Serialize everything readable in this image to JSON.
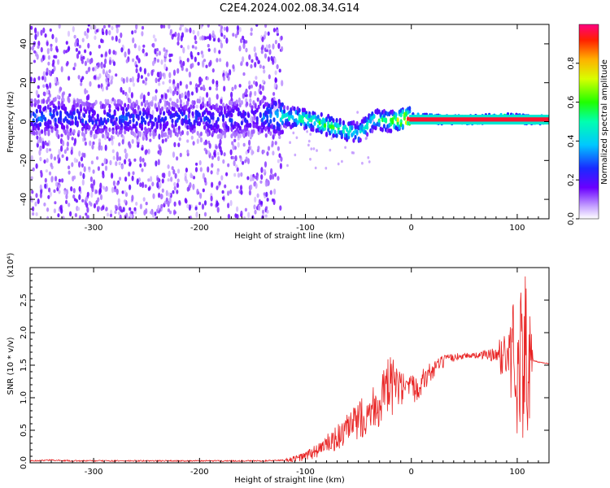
{
  "title": "C2E4.2024.002.08.34.G14",
  "chart_data": [
    {
      "type": "heatmap",
      "xlabel": "Height of straight line (km)",
      "ylabel": "Frequency (Hz)",
      "xlim": [
        -360,
        130
      ],
      "ylim": [
        -50,
        50
      ],
      "xticks": [
        -300,
        -200,
        -100,
        0,
        100
      ],
      "yticks": [
        -40,
        -20,
        0,
        20,
        40
      ],
      "colorbar": {
        "label": "Normalized spectral amplitude",
        "range": [
          0.0,
          1.0
        ],
        "ticks": [
          "0.0",
          "0.2",
          "0.4",
          "0.6",
          "0.8"
        ]
      },
      "signal_track": {
        "x": [
          -360,
          -330,
          -300,
          -270,
          -240,
          -210,
          -180,
          -150,
          -130,
          -110,
          -95,
          -80,
          -65,
          -50,
          -35,
          -20,
          -10,
          0,
          30,
          60,
          90,
          110,
          130
        ],
        "freq_hz": [
          2,
          3,
          1,
          2,
          1,
          2,
          1,
          2,
          3,
          2,
          1,
          -2,
          -4,
          -6,
          1,
          0,
          1,
          2,
          1,
          1,
          2,
          1,
          1
        ],
        "peak_amplitude": [
          0.35,
          0.3,
          0.28,
          0.3,
          0.25,
          0.3,
          0.28,
          0.25,
          0.4,
          0.55,
          0.6,
          0.6,
          0.55,
          0.5,
          0.55,
          0.6,
          0.85,
          1.0,
          1.0,
          1.0,
          0.95,
          0.9,
          0.95
        ]
      },
      "grid": false
    },
    {
      "type": "line",
      "xlabel": "Height of straight line (km)",
      "ylabel": "SNR (10 * v/v)",
      "y_multiplier": "(x10⁴)",
      "xlim": [
        -360,
        130
      ],
      "ylim": [
        0,
        3.0
      ],
      "xticks": [
        -300,
        -200,
        -100,
        0,
        100
      ],
      "yticks": [
        0.0,
        0.5,
        1.0,
        1.5,
        2.0,
        2.5
      ],
      "color": "#e82222",
      "series": [
        {
          "x": [
            -360,
            -340,
            -320,
            -300,
            -280,
            -260,
            -240,
            -220,
            -200,
            -180,
            -160,
            -140,
            -120,
            -110,
            -100,
            -90,
            -80,
            -70,
            -60,
            -50,
            -40,
            -30,
            -20,
            -15,
            -10,
            0,
            10,
            20,
            30,
            40,
            50,
            60,
            70,
            80,
            90,
            95,
            100,
            105,
            110,
            120,
            130
          ],
          "y": [
            0.03,
            0.04,
            0.03,
            0.03,
            0.03,
            0.03,
            0.03,
            0.03,
            0.03,
            0.03,
            0.03,
            0.03,
            0.04,
            0.06,
            0.1,
            0.18,
            0.28,
            0.38,
            0.5,
            0.65,
            0.8,
            0.95,
            1.15,
            1.2,
            1.1,
            1.1,
            1.25,
            1.42,
            1.55,
            1.62,
            1.65,
            1.65,
            1.66,
            1.65,
            1.65,
            1.63,
            1.62,
            1.6,
            1.58,
            1.55,
            1.52
          ]
        }
      ],
      "noise_band": {
        "x": [
          -120,
          -100,
          -80,
          -60,
          -40,
          -20,
          -10,
          0,
          20,
          40,
          60,
          80,
          90,
          95,
          100,
          105,
          110,
          115
        ],
        "amplitude": [
          0.02,
          0.08,
          0.15,
          0.25,
          0.35,
          0.5,
          0.3,
          0.25,
          0.15,
          0.06,
          0.04,
          0.12,
          0.5,
          0.9,
          1.2,
          1.4,
          1.3,
          0.05
        ]
      },
      "grid": false
    }
  ]
}
